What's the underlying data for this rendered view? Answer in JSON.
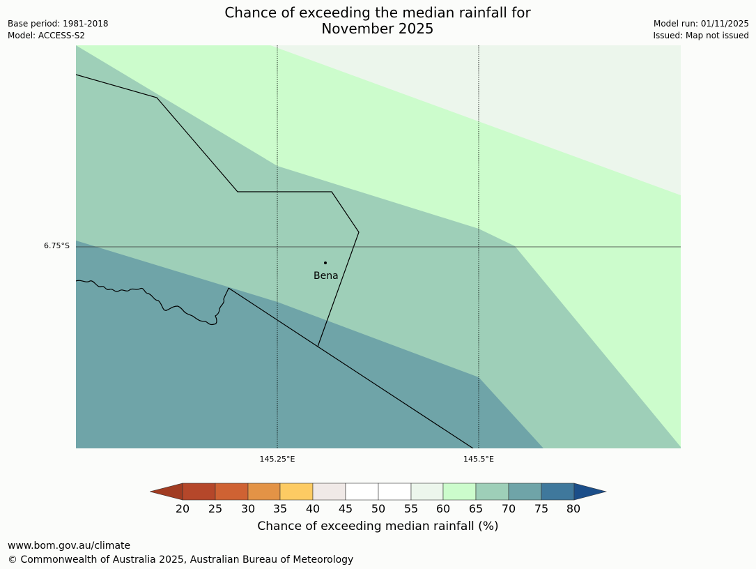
{
  "title": {
    "line1": "Chance of exceeding the median rainfall for",
    "line2": "November 2025"
  },
  "meta_left": {
    "base_period": "Base period: 1981-2018",
    "model": "Model: ACCESS-S2"
  },
  "meta_right": {
    "model_run": "Model run: 01/11/2025",
    "issued": "Issued: Map not issued"
  },
  "map": {
    "lat_labels": [
      "6.75°S"
    ],
    "lon_labels": [
      "145.25°E",
      "145.5°E"
    ],
    "place": "Bena"
  },
  "colors": {
    "c20": "#a13c22",
    "c25": "#b5472a",
    "c30": "#cf6233",
    "c35": "#e39346",
    "c40": "#fdcb63",
    "c45": "#f0e9e7",
    "c50": "#ffffff",
    "c55": "#ffffff",
    "c60": "#ecf6ec",
    "c65": "#ccfccc",
    "c70": "#9ecfb8",
    "c75": "#6fa4a8",
    "c80": "#3f789c",
    "c80plus": "#1b4e89"
  },
  "colorbar": {
    "ticks": [
      "20",
      "25",
      "30",
      "35",
      "40",
      "45",
      "50",
      "55",
      "60",
      "65",
      "70",
      "75",
      "80"
    ],
    "label": "Chance of exceeding median rainfall (%)"
  },
  "footer": {
    "url": "www.bom.gov.au/climate",
    "copyright": "© Commonwealth of Australia 2025, Australian Bureau of Meteorology"
  }
}
